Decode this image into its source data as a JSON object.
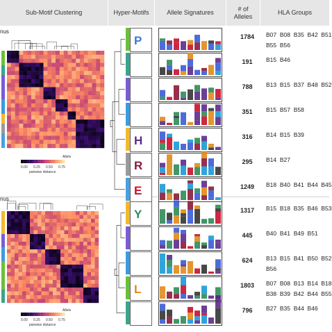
{
  "headers": {
    "sub_motif": "Sub-Motif Clustering",
    "hyper_motifs": "Hyper-Motifs",
    "allele_signatures": "Allele Signatures",
    "num_alleles": "# of\nAlleles",
    "hla_groups": "HLA Groups"
  },
  "sections": [
    {
      "label": "nus",
      "heatmap_axis_label": "Allele",
      "colorbar_ticks": [
        "0.00",
        "0.25",
        "0.50",
        "0.75"
      ],
      "colorbar_label": "pairwise distance",
      "rows": [
        {
          "count": "1784",
          "hla": "B07  B08  B35  B42  B51\nB55  B56",
          "letter": "P",
          "letter_color": "#3a7bd5",
          "bar_color": "#6cbf3a"
        },
        {
          "count": "191",
          "hla": "B15  B46",
          "letter": "",
          "letter_color": "#333333",
          "bar_color": "#3aa58a"
        },
        {
          "count": "788",
          "hla": "B13  B15  B37  B48  B52",
          "letter": "",
          "letter_color": "#333333",
          "bar_color": "#7b5cd6"
        },
        {
          "count": "351",
          "hla": "B15  B57  B58",
          "letter": "",
          "letter_color": "#333333",
          "bar_color": "#3a9be0"
        },
        {
          "count": "316",
          "hla": "B14  B15  B39",
          "letter": "H",
          "letter_color": "#5a2a8a",
          "bar_color": "#f2b830"
        },
        {
          "count": "295",
          "hla": "B14  B27",
          "letter": "R",
          "letter_color": "#8a1a3a",
          "bar_color": "#9a9a9a"
        },
        {
          "count": "1249",
          "hla": "B18  B40  B41  B44  B45",
          "letter": "E",
          "letter_color": "#c8102e",
          "bar_color": "#4a9fe0"
        }
      ]
    },
    {
      "label": "nus",
      "heatmap_axis_label": "Allele",
      "colorbar_ticks": [
        "0.00",
        "0.25",
        "0.50",
        "0.75"
      ],
      "colorbar_label": "pairwise distance",
      "rows": [
        {
          "count": "1317",
          "hla": "B15  B18  B35  B46  B53",
          "letter": "Y",
          "letter_color": "#2e8b57",
          "bar_color": "#f2b830"
        },
        {
          "count": "445",
          "hla": "B40  B41  B49  B51",
          "letter": "",
          "letter_color": "#333333",
          "bar_color": "#7b5cd6"
        },
        {
          "count": "624",
          "hla": "B13  B15  B41  B50  B52\nB56",
          "letter": "",
          "letter_color": "#333333",
          "bar_color": "#3a9be0"
        },
        {
          "count": "1803",
          "hla": "B07  B08  B13  B14  B18\nB38  B39  B42  B44  B55",
          "letter": "L",
          "letter_color": "#e08a1a",
          "bar_color": "#6cbf3a"
        },
        {
          "count": "796",
          "hla": "B27  B35  B44  B46",
          "letter": "",
          "letter_color": "#333333",
          "bar_color": "#3aa58a"
        }
      ]
    }
  ]
}
